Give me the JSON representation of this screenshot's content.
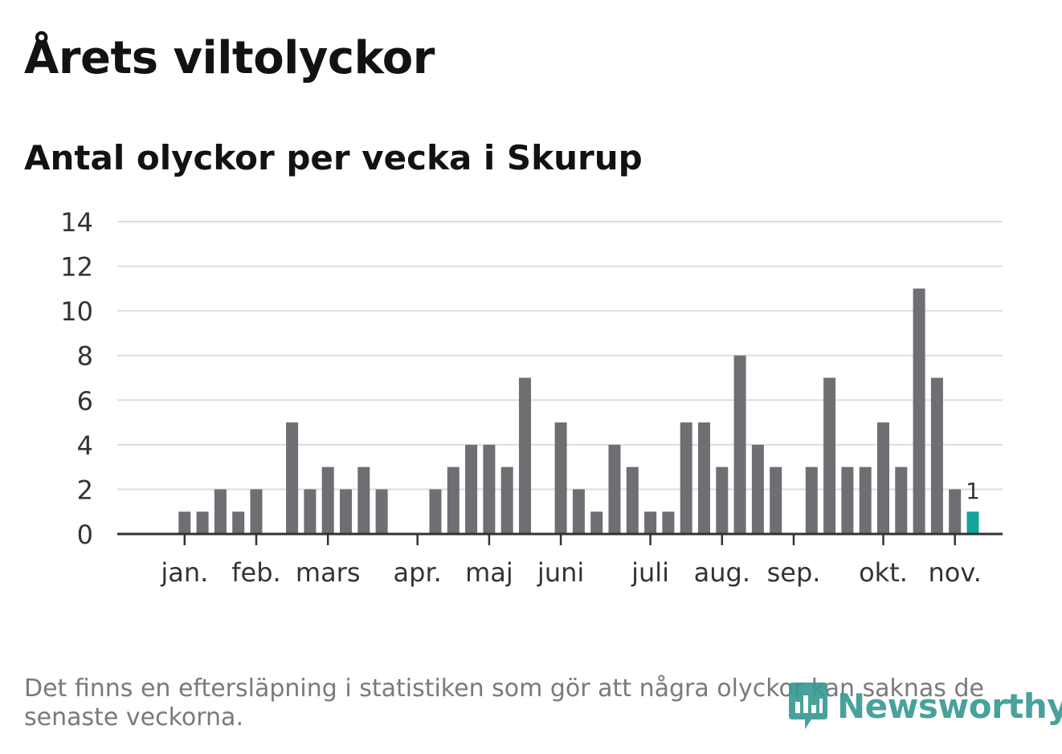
{
  "title": "Årets viltolyckor",
  "subtitle": "Antal olyckor per vecka i Skurup",
  "footnote": "Det finns en eftersläpning i statistiken som gör att några olyckor kan saknas de senaste veckorna.",
  "logo_text": "Newsworthy",
  "colors": {
    "bar": "#6e6e73",
    "highlight": "#12a39b",
    "grid": "#dddddd",
    "axis": "#333333",
    "logo": "#3a9a94"
  },
  "chart_data": {
    "type": "bar",
    "title": "Antal olyckor per vecka i Skurup",
    "xlabel": "",
    "ylabel": "",
    "ylim": [
      0,
      14
    ],
    "yticks": [
      0,
      2,
      4,
      6,
      8,
      10,
      12,
      14
    ],
    "weeks": [
      1,
      2,
      3,
      4,
      5,
      6,
      7,
      8,
      9,
      10,
      11,
      12,
      13,
      14,
      15,
      16,
      17,
      18,
      19,
      20,
      21,
      22,
      23,
      24,
      25,
      26,
      27,
      28,
      29,
      30,
      31,
      32,
      33,
      34,
      35,
      36,
      37,
      38,
      39,
      40,
      41,
      42,
      43,
      44,
      45,
      46,
      47,
      48
    ],
    "values": [
      0,
      0,
      1,
      1,
      2,
      1,
      2,
      0,
      5,
      2,
      3,
      2,
      3,
      2,
      0,
      0,
      2,
      3,
      4,
      4,
      3,
      7,
      0,
      5,
      2,
      1,
      4,
      3,
      1,
      1,
      5,
      5,
      3,
      8,
      4,
      3,
      0,
      3,
      7,
      3,
      3,
      5,
      3,
      11,
      7,
      2,
      1,
      0
    ],
    "month_labels": [
      {
        "label": "jan.",
        "tick_week": 3
      },
      {
        "label": "feb.",
        "tick_week": 7
      },
      {
        "label": "mars",
        "tick_week": 11
      },
      {
        "label": "apr.",
        "tick_week": 16
      },
      {
        "label": "maj",
        "tick_week": 20
      },
      {
        "label": "juni",
        "tick_week": 24
      },
      {
        "label": "juli",
        "tick_week": 29
      },
      {
        "label": "aug.",
        "tick_week": 33
      },
      {
        "label": "sep.",
        "tick_week": 37
      },
      {
        "label": "okt.",
        "tick_week": 42
      },
      {
        "label": "nov.",
        "tick_week": 46
      }
    ],
    "highlight": {
      "week": 47,
      "label": "1"
    }
  }
}
